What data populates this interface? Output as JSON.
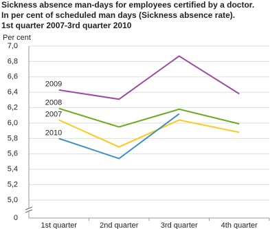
{
  "chart_data": {
    "type": "line",
    "title": "Sickness absence man-days for employees certified by a doctor.",
    "subtitle": "In per cent of scheduled man days (Sickness absence rate).",
    "period": "1st quarter 2007-3rd quarter 2010",
    "y_label": "Per cent",
    "categories": [
      "1st quarter",
      "2nd quarter",
      "3rd quarter",
      "4th quarter"
    ],
    "series": [
      {
        "name": "2009",
        "color": "#9b4aa0",
        "values": [
          6.43,
          6.31,
          6.87,
          6.38
        ]
      },
      {
        "name": "2008",
        "color": "#6aaa1e",
        "values": [
          6.19,
          5.95,
          6.18,
          5.99
        ]
      },
      {
        "name": "2007",
        "color": "#ffc81e",
        "values": [
          6.04,
          5.69,
          6.04,
          5.88
        ]
      },
      {
        "name": "2010",
        "color": "#3c8fc0",
        "values": [
          5.8,
          5.54,
          6.12,
          null
        ]
      }
    ],
    "ylim": [
      0,
      7
    ],
    "yticks": [
      0,
      {
        "value": 5,
        "label": "5,0"
      },
      {
        "value": 5.2,
        "label": "5,2"
      },
      {
        "value": 5.4,
        "label": "5,4"
      },
      {
        "value": 5.6,
        "label": "5,6"
      },
      {
        "value": 5.8,
        "label": "5,8"
      },
      {
        "value": 6,
        "label": "6,0"
      },
      {
        "value": 6.2,
        "label": "6,2"
      },
      {
        "value": 6.4,
        "label": "6,4"
      },
      {
        "value": 6.6,
        "label": "6,6"
      },
      {
        "value": 6.8,
        "label": "6,8"
      },
      {
        "value": 7,
        "label": "7,0"
      }
    ],
    "axis_break": true,
    "grid": true
  }
}
